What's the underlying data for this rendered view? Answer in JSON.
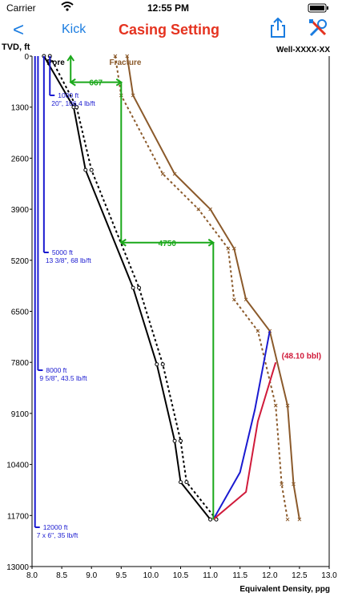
{
  "status_bar": {
    "carrier": "Carrier",
    "time": "12:55 PM"
  },
  "nav": {
    "back_label": "<",
    "kick_label": "Kick",
    "title": "Casing Setting",
    "share_icon": "share-icon",
    "tools_icon": "wrench-screwdriver-icon"
  },
  "header": {
    "tvd_label": "TVD, ft",
    "well_name": "Well-XXXX-XX"
  },
  "chart_data": {
    "type": "line",
    "xlabel": "Equivalent Density, ppg",
    "ylabel": "TVD, ft",
    "xlim": [
      8.0,
      13.0
    ],
    "ylim": [
      0,
      13000
    ],
    "y_inverted": true,
    "x_ticks": [
      "8.0",
      "8.5",
      "9.0",
      "9.5",
      "10.0",
      "10.5",
      "11.0",
      "11.5",
      "12.0",
      "12.5",
      "13.0"
    ],
    "y_ticks": [
      "0",
      "1300",
      "2600",
      "3900",
      "5200",
      "6500",
      "7800",
      "9100",
      "10400",
      "11700",
      "13000"
    ],
    "pore_label": "Pore",
    "fracture_label": "Fracture",
    "series": [
      {
        "name": "Pore",
        "color": "#000000",
        "style": "solid",
        "x": [
          8.2,
          8.7,
          8.9,
          9.7,
          10.1,
          10.4,
          10.5,
          11.0
        ],
        "y": [
          0,
          1300,
          2900,
          5900,
          7850,
          9800,
          10850,
          11800
        ]
      },
      {
        "color": "#000000",
        "style": "dotted",
        "x": [
          8.3,
          8.75,
          9.0,
          9.8,
          10.2,
          10.5,
          10.6,
          11.1
        ],
        "y": [
          0,
          1300,
          2900,
          5900,
          7850,
          9800,
          10850,
          11800
        ]
      },
      {
        "name": "Fracture",
        "color": "#8b5a2b",
        "style": "solid",
        "x": [
          9.6,
          9.7,
          10.4,
          11.0,
          11.4,
          11.6,
          12.0,
          12.3,
          12.4,
          12.5
        ],
        "y": [
          0,
          1000,
          3000,
          3900,
          4900,
          6200,
          7000,
          8900,
          10900,
          11800
        ]
      },
      {
        "color": "#8b5a2b",
        "style": "dotted",
        "x": [
          9.4,
          9.5,
          10.2,
          10.8,
          11.3,
          11.4,
          11.8,
          12.1,
          12.2,
          12.3
        ],
        "y": [
          0,
          1000,
          3000,
          3900,
          4900,
          6200,
          7000,
          8900,
          10900,
          11800
        ]
      },
      {
        "color": "#1a1ad0",
        "style": "solid",
        "x": [
          11.05,
          11.5,
          11.75,
          12.0
        ],
        "y": [
          11800,
          10600,
          9000,
          7000
        ]
      },
      {
        "color": "#d01a3a",
        "style": "solid",
        "x": [
          11.05,
          11.6,
          11.8,
          12.1
        ],
        "y": [
          11800,
          11100,
          9300,
          7800
        ]
      }
    ],
    "kick_volume_label": "(48.10 bbl)",
    "casing_strings": [
      {
        "depth_label": "1000 ft",
        "spec_label": "20\", 106.4 lb/ft",
        "depth": 1000,
        "x": 8.3
      },
      {
        "depth_label": "5000 ft",
        "spec_label": "13 3/8\", 68 lb/ft",
        "depth": 5000,
        "x": 8.2
      },
      {
        "depth_label": "8000 ft",
        "spec_label": "9 5/8\", 43.5 lb/ft",
        "depth": 8000,
        "x": 8.1
      },
      {
        "depth_label": "12000 ft",
        "spec_label": "7 x 6\", 35 lb/ft",
        "depth": 12000,
        "x": 8.05
      }
    ],
    "arrows": [
      {
        "label": "667",
        "x1": 8.65,
        "x2": 9.5,
        "y": 667
      },
      {
        "label": "4750",
        "x1": 9.5,
        "x2": 11.05,
        "y": 4750
      }
    ]
  }
}
